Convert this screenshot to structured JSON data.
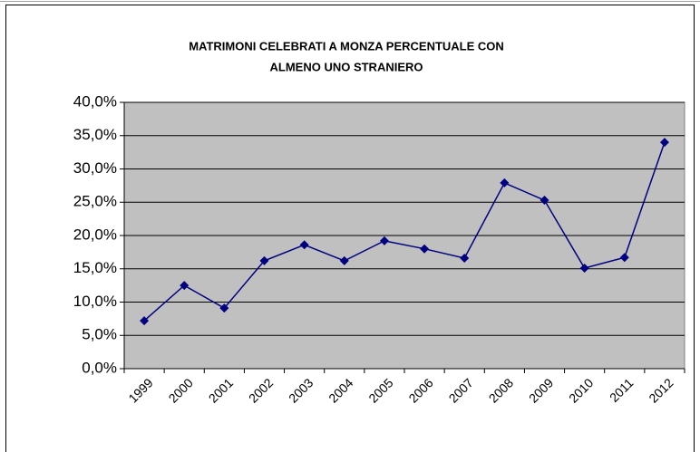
{
  "chart_data": {
    "type": "line",
    "title": [
      "MATRIMONI CELEBRATI A MONZA PERCENTUALE CON",
      "ALMENO UNO STRANIERO"
    ],
    "categories": [
      "1999",
      "2000",
      "2001",
      "2002",
      "2003",
      "2004",
      "2005",
      "2006",
      "2007",
      "2008",
      "2009",
      "2010",
      "2011",
      "2012"
    ],
    "series": [
      {
        "color": "#000080",
        "values": [
          7.2,
          12.5,
          9.1,
          16.2,
          18.6,
          16.2,
          19.2,
          18.0,
          16.6,
          27.9,
          25.3,
          15.1,
          16.7,
          34.0
        ]
      }
    ],
    "ylim": [
      0,
      40
    ],
    "yticks": [
      {
        "value": 0,
        "label": "0,0%"
      },
      {
        "value": 5,
        "label": "5,0%"
      },
      {
        "value": 10,
        "label": "10,0%"
      },
      {
        "value": 15,
        "label": "15,0%"
      },
      {
        "value": 20,
        "label": "20,0%"
      },
      {
        "value": 25,
        "label": "25,0%"
      },
      {
        "value": 30,
        "label": "30,0%"
      },
      {
        "value": 35,
        "label": "35,0%"
      },
      {
        "value": 40,
        "label": "40,0%"
      }
    ],
    "grid": true
  }
}
